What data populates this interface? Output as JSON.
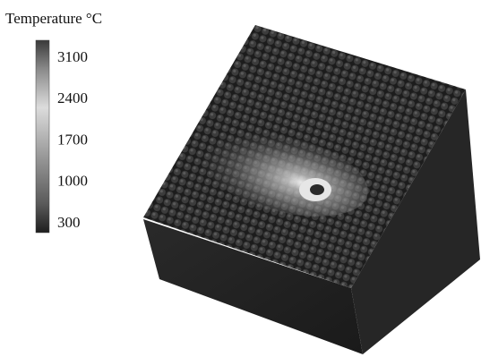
{
  "colorbar": {
    "title": "Temperature °C",
    "ticks": [
      3100,
      2400,
      1700,
      1000,
      300
    ]
  }
}
